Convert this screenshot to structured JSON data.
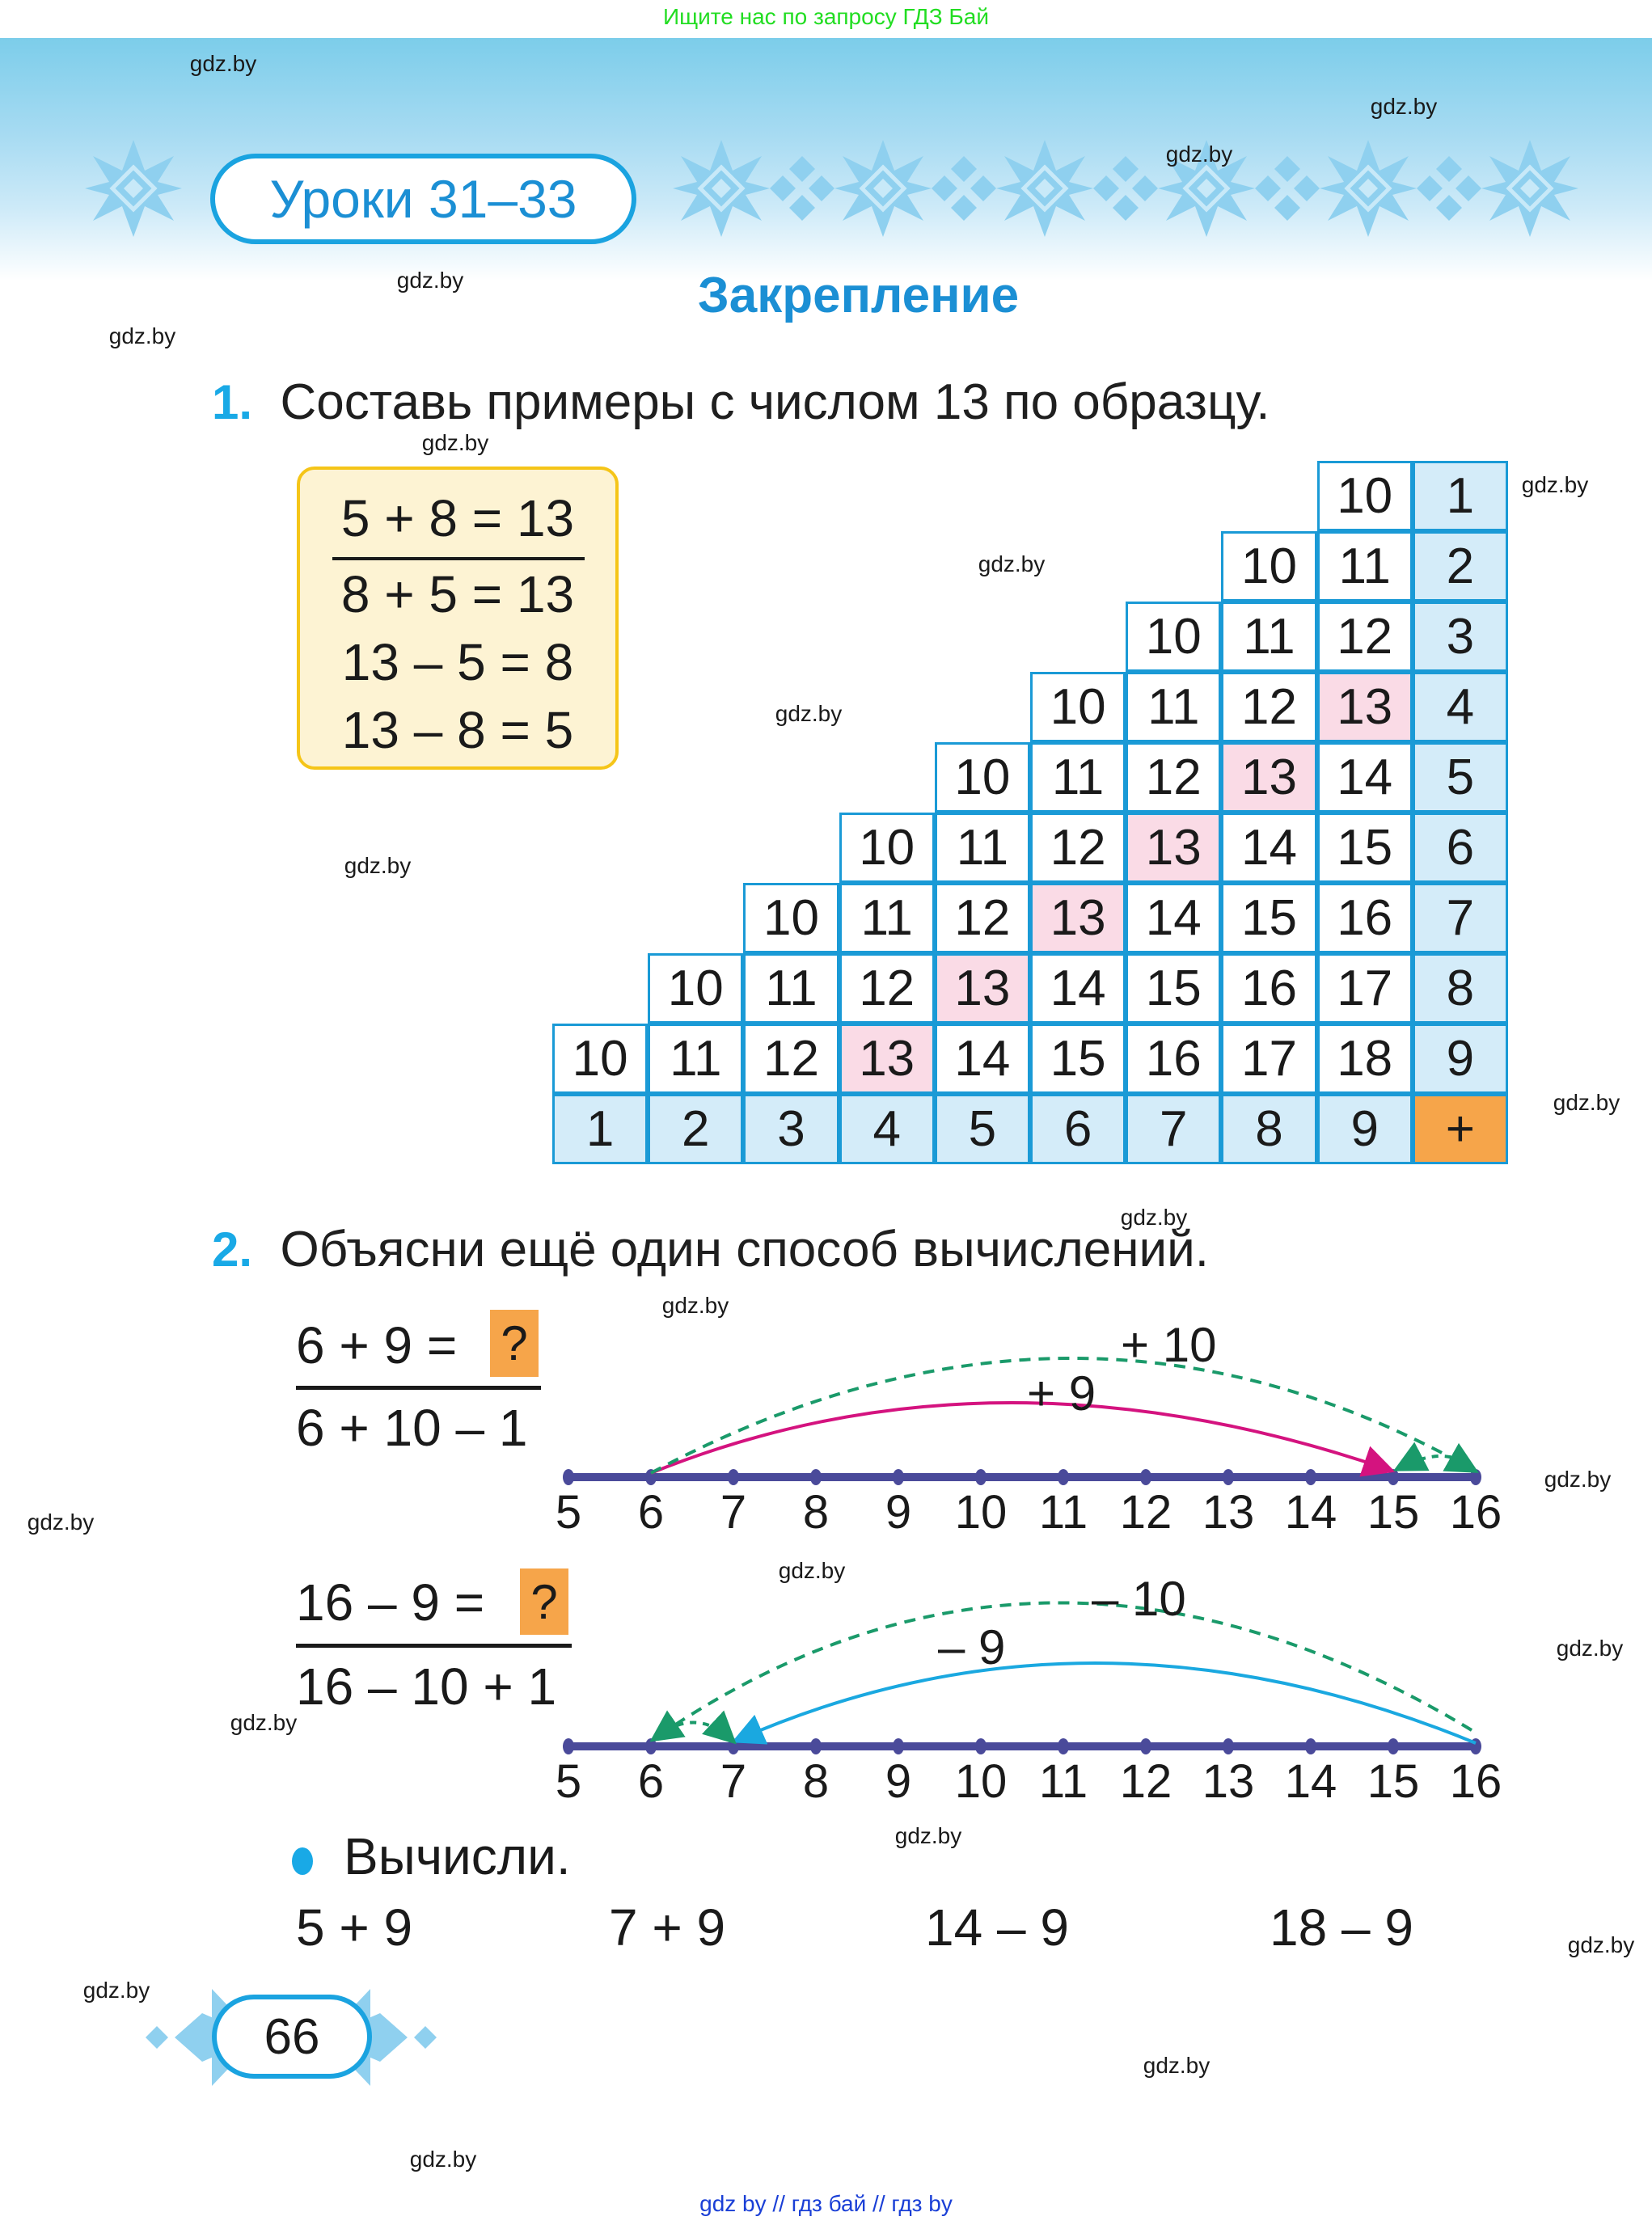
{
  "top_banner": {
    "text": "Ищите нас по запросу ГДЗ Бай"
  },
  "header": {
    "lesson_label": "Уроки 31–33",
    "section_title": "Закрепление"
  },
  "colors": {
    "accent_blue": "#1b8fd4",
    "task_number_blue": "#19a9e6",
    "grid_line": "#1a9ad6",
    "header_cell": "#d4ecf9",
    "highlight_cell": "#fadbe6",
    "orange": "#f6a54a",
    "sample_fill": "#fdf3d3",
    "sample_border": "#f5c518",
    "number_line": "#4a4a9a",
    "arc_pink": "#d4137f",
    "arc_green_dashed": "#1a9a6a",
    "arc_cyan": "#1aa8e0"
  },
  "task1": {
    "number": "1.",
    "text": "Составь примеры с числом 13 по образцу.",
    "sample": [
      "5 + 8 = 13",
      "8 + 5 = 13",
      "13 – 5 = 8",
      "13 – 8 = 5"
    ],
    "table": {
      "operator": "+",
      "row_headers": [
        "1",
        "2",
        "3",
        "4",
        "5",
        "6",
        "7",
        "8",
        "9"
      ],
      "column_headers": [
        "1",
        "2",
        "3",
        "4",
        "5",
        "6",
        "7",
        "8",
        "9"
      ],
      "highlight_value": "13",
      "rows": [
        [
          "10"
        ],
        [
          "10",
          "11"
        ],
        [
          "10",
          "11",
          "12"
        ],
        [
          "10",
          "11",
          "12",
          "13"
        ],
        [
          "10",
          "11",
          "12",
          "13",
          "14"
        ],
        [
          "10",
          "11",
          "12",
          "13",
          "14",
          "15"
        ],
        [
          "10",
          "11",
          "12",
          "13",
          "14",
          "15",
          "16"
        ],
        [
          "10",
          "11",
          "12",
          "13",
          "14",
          "15",
          "16",
          "17"
        ],
        [
          "10",
          "11",
          "12",
          "13",
          "14",
          "15",
          "16",
          "17",
          "18"
        ]
      ]
    }
  },
  "task2": {
    "number": "2.",
    "text": "Объясни ещё один способ вычислений.",
    "example1": {
      "expression": "6 + 9 =",
      "unknown": "?",
      "method": "6 + 10 – 1",
      "number_line": [
        "5",
        "6",
        "7",
        "8",
        "9",
        "10",
        "11",
        "12",
        "13",
        "14",
        "15",
        "16"
      ],
      "arc_solid_label": "+ 9",
      "arc_dashed_label": "+ 10"
    },
    "example2": {
      "expression": "16 – 9 =",
      "unknown": "?",
      "method": "16 – 10 + 1",
      "number_line": [
        "5",
        "6",
        "7",
        "8",
        "9",
        "10",
        "11",
        "12",
        "13",
        "14",
        "15",
        "16"
      ],
      "arc_solid_label": "– 9",
      "arc_dashed_label": "– 10"
    },
    "compute": {
      "label": "Вычисли.",
      "items": [
        "5 + 9",
        "7 + 9",
        "14 – 9",
        "18 – 9"
      ]
    }
  },
  "page_number": "66",
  "watermark": "gdz.by",
  "footer_links": "gdz by  //  гдз бай  //  гдз by"
}
